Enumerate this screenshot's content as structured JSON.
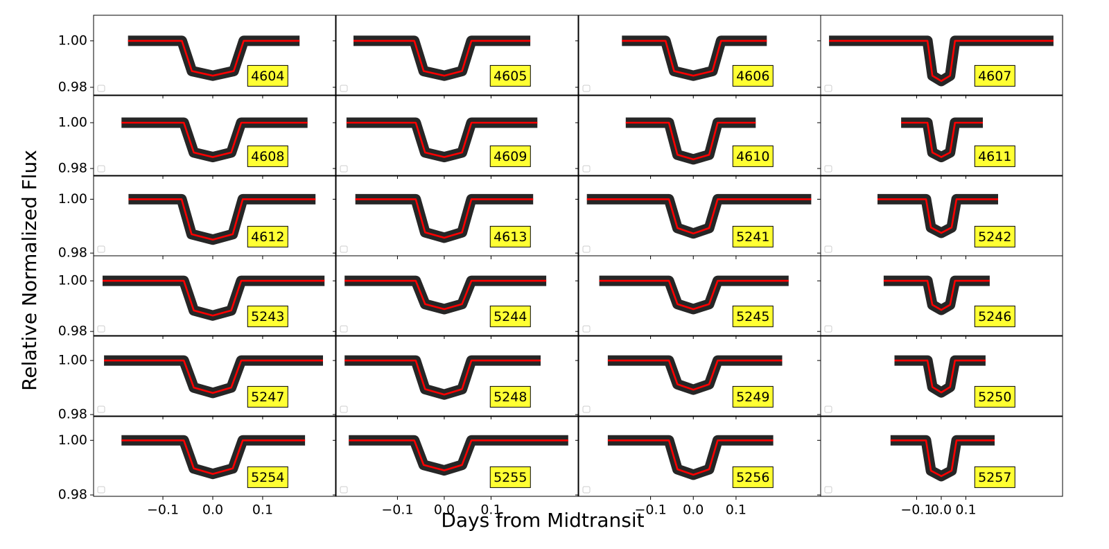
{
  "chart_data": {
    "type": "line",
    "xlabel": "Days from Midtransit",
    "ylabel": "Relative Normalized Flux",
    "line_color": "#ff0000",
    "point_color": "#000000",
    "label_color": "#ffff33",
    "columns": [
      {
        "xlim": [
          -0.239,
          0.246
        ],
        "xticks": [
          {
            "value": -0.1,
            "label": "−0.1"
          },
          {
            "value": 0,
            "label": "0.0"
          },
          {
            "value": 0.1,
            "label": "0.1"
          }
        ]
      },
      {
        "xlim": [
          -0.231,
          0.286
        ],
        "xticks": [
          {
            "value": -0.1,
            "label": "−0.1"
          },
          {
            "value": 0,
            "label": "0.0"
          },
          {
            "value": 0.1,
            "label": "0.1"
          }
        ]
      },
      {
        "xlim": [
          -0.268,
          0.298
        ],
        "xticks": [
          {
            "value": -0.1,
            "label": "−0.1"
          },
          {
            "value": 0,
            "label": "0.0"
          },
          {
            "value": 0.1,
            "label": "0.1"
          }
        ]
      },
      {
        "xlim": [
          -0.49,
          0.493
        ],
        "xticks": [
          {
            "value": -0.1,
            "label": "−0.1"
          },
          {
            "value": 0,
            "label": "0.0"
          },
          {
            "value": 0.1,
            "label": "0.1"
          }
        ]
      }
    ],
    "rows": [
      {
        "ylim": [
          0.9767,
          1.011
        ],
        "yticks": [
          {
            "value": 0.98,
            "label": "0.98"
          },
          {
            "value": 1.0,
            "label": "1.00"
          }
        ]
      },
      {
        "ylim": [
          0.977,
          1.0118
        ],
        "yticks": [
          {
            "value": 0.98,
            "label": "0.98"
          },
          {
            "value": 1.0,
            "label": "1.00"
          }
        ]
      },
      {
        "ylim": [
          0.979,
          1.0086
        ],
        "yticks": [
          {
            "value": 0.98,
            "label": "0.98"
          },
          {
            "value": 1.0,
            "label": "1.00"
          }
        ]
      },
      {
        "ylim": [
          0.9784,
          1.0099
        ],
        "yticks": [
          {
            "value": 0.98,
            "label": "0.98"
          },
          {
            "value": 1.0,
            "label": "1.00"
          }
        ]
      },
      {
        "ylim": [
          0.9795,
          1.009
        ],
        "yticks": [
          {
            "value": 0.98,
            "label": "0.98"
          },
          {
            "value": 1.0,
            "label": "1.00"
          }
        ]
      },
      {
        "ylim": [
          0.9795,
          1.0087
        ],
        "yticks": [
          {
            "value": 0.98,
            "label": "0.98"
          },
          {
            "value": 1.0,
            "label": "1.00"
          }
        ]
      }
    ],
    "panels": [
      {
        "label": "4604",
        "x": [
          -0.17,
          -0.062,
          -0.042,
          0,
          0.042,
          0.062,
          0.174
        ],
        "values": [
          1,
          1,
          0.987,
          0.985,
          0.987,
          1,
          1
        ]
      },
      {
        "label": "4605",
        "x": [
          -0.194,
          -0.064,
          -0.044,
          0,
          0.038,
          0.058,
          0.184
        ],
        "values": [
          1,
          1,
          0.987,
          0.985,
          0.987,
          1,
          1
        ]
      },
      {
        "label": "4606",
        "x": [
          -0.167,
          -0.065,
          -0.045,
          0,
          0.045,
          0.065,
          0.172
        ],
        "values": [
          1,
          1,
          0.987,
          0.985,
          0.987,
          1,
          1
        ]
      },
      {
        "label": "4607",
        "x": [
          -0.456,
          -0.056,
          -0.036,
          0,
          0.036,
          0.056,
          0.456
        ],
        "values": [
          1,
          1,
          0.985,
          0.9827,
          0.985,
          1,
          1
        ]
      },
      {
        "label": "4608",
        "x": [
          -0.183,
          -0.058,
          -0.038,
          0,
          0.037,
          0.057,
          0.19
        ],
        "values": [
          1,
          1,
          0.987,
          0.985,
          0.987,
          1,
          1
        ]
      },
      {
        "label": "4609",
        "x": [
          -0.209,
          -0.061,
          -0.041,
          0,
          0.038,
          0.058,
          0.199
        ],
        "values": [
          1,
          1,
          0.987,
          0.985,
          0.987,
          1,
          1
        ]
      },
      {
        "label": "4610",
        "x": [
          -0.158,
          -0.057,
          -0.037,
          0,
          0.037,
          0.057,
          0.146
        ],
        "values": [
          1,
          1,
          0.986,
          0.984,
          0.986,
          1,
          1
        ]
      },
      {
        "label": "4611",
        "x": [
          -0.163,
          -0.056,
          -0.036,
          0,
          0.036,
          0.056,
          0.169
        ],
        "values": [
          1,
          1,
          0.987,
          0.985,
          0.987,
          1,
          1
        ]
      },
      {
        "label": "4612",
        "x": [
          -0.169,
          -0.0625,
          -0.0425,
          0,
          0.04,
          0.06,
          0.206
        ],
        "values": [
          1,
          1,
          0.987,
          0.985,
          0.987,
          1,
          1
        ]
      },
      {
        "label": "4613",
        "x": [
          -0.19,
          -0.061,
          -0.041,
          0,
          0.038,
          0.058,
          0.19
        ],
        "values": [
          1,
          1,
          0.9877,
          0.9857,
          0.9877,
          1,
          1
        ]
      },
      {
        "label": "5241",
        "x": [
          -0.249,
          -0.057,
          -0.037,
          0,
          0.037,
          0.057,
          0.276
        ],
        "values": [
          1,
          1,
          0.9893,
          0.9873,
          0.9893,
          1,
          1
        ]
      },
      {
        "label": "5242",
        "x": [
          -0.259,
          -0.062,
          -0.042,
          0,
          0.042,
          0.062,
          0.231
        ],
        "values": [
          1,
          1,
          0.9895,
          0.9875,
          0.9895,
          1,
          1
        ]
      },
      {
        "label": "5243",
        "x": [
          -0.221,
          -0.058,
          -0.038,
          0,
          0.037,
          0.057,
          0.224
        ],
        "values": [
          1,
          1,
          0.9883,
          0.9863,
          0.9883,
          1,
          1
        ]
      },
      {
        "label": "5244",
        "x": [
          -0.213,
          -0.061,
          -0.041,
          0,
          0.038,
          0.058,
          0.218
        ],
        "values": [
          1,
          1,
          0.9908,
          0.9888,
          0.9908,
          1,
          1
        ]
      },
      {
        "label": "5245",
        "x": [
          -0.22,
          -0.057,
          -0.037,
          0,
          0.037,
          0.057,
          0.223
        ],
        "values": [
          1,
          1,
          0.9908,
          0.9888,
          0.9908,
          1,
          1
        ]
      },
      {
        "label": "5246",
        "x": [
          -0.234,
          -0.056,
          -0.036,
          0,
          0.036,
          0.056,
          0.197
        ],
        "values": [
          1,
          1,
          0.9905,
          0.9885,
          0.9905,
          1,
          1
        ]
      },
      {
        "label": "5247",
        "x": [
          -0.218,
          -0.058,
          -0.038,
          0,
          0.037,
          0.057,
          0.221
        ],
        "values": [
          1,
          1,
          0.99,
          0.988,
          0.99,
          1,
          1
        ]
      },
      {
        "label": "5248",
        "x": [
          -0.213,
          -0.061,
          -0.041,
          0,
          0.038,
          0.058,
          0.206
        ],
        "values": [
          1,
          1,
          0.9894,
          0.9874,
          0.9894,
          1,
          1
        ]
      },
      {
        "label": "5249",
        "x": [
          -0.2,
          -0.057,
          -0.037,
          0,
          0.037,
          0.057,
          0.208
        ],
        "values": [
          1,
          1,
          0.9912,
          0.9892,
          0.9912,
          1,
          1
        ]
      },
      {
        "label": "5250",
        "x": [
          -0.19,
          -0.056,
          -0.036,
          0,
          0.036,
          0.056,
          0.18
        ],
        "values": [
          1,
          1,
          0.9902,
          0.9882,
          0.9902,
          1,
          1
        ]
      },
      {
        "label": "5254",
        "x": [
          -0.183,
          -0.058,
          -0.038,
          0,
          0.04,
          0.06,
          0.185
        ],
        "values": [
          1,
          1,
          0.9897,
          0.9877,
          0.9897,
          1,
          1
        ]
      },
      {
        "label": "5255",
        "x": [
          -0.204,
          -0.064,
          -0.044,
          0,
          0.038,
          0.058,
          0.265
        ],
        "values": [
          1,
          1,
          0.991,
          0.989,
          0.991,
          1,
          1
        ]
      },
      {
        "label": "5256",
        "x": [
          -0.2,
          -0.057,
          -0.037,
          0,
          0.037,
          0.057,
          0.187
        ],
        "values": [
          1,
          1,
          0.9894,
          0.9874,
          0.9894,
          1,
          1
        ]
      },
      {
        "label": "5257",
        "x": [
          -0.206,
          -0.062,
          -0.042,
          0,
          0.042,
          0.062,
          0.217
        ],
        "values": [
          1,
          1,
          0.9889,
          0.9869,
          0.9889,
          1,
          1
        ]
      }
    ]
  }
}
